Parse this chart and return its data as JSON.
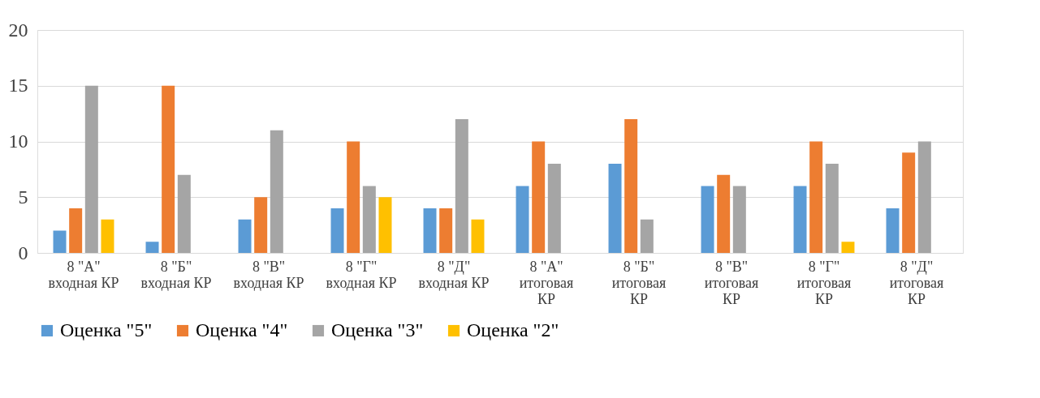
{
  "chart_data": {
    "type": "bar",
    "categories": [
      "8 \"А\" входная КР",
      "8 \"Б\" входная КР",
      "8 \"В\" входная КР",
      "8 \"Г\" входная КР",
      "8 \"Д\" входная КР",
      "8 \"А\" итоговая КР",
      "8 \"Б\" итоговая КР",
      "8 \"В\" итоговая КР",
      "8 \"Г\" итоговая КР",
      "8 \"Д\" итоговая КР"
    ],
    "series": [
      {
        "name": "Оценка \"5\"",
        "color": "#5b9bd5",
        "values": [
          2,
          1,
          3,
          4,
          4,
          6,
          8,
          6,
          6,
          4
        ]
      },
      {
        "name": "Оценка \"4\"",
        "color": "#ed7d31",
        "values": [
          4,
          15,
          5,
          10,
          4,
          10,
          12,
          7,
          10,
          9
        ]
      },
      {
        "name": "Оценка \"3\"",
        "color": "#a5a5a5",
        "values": [
          15,
          7,
          11,
          6,
          12,
          8,
          3,
          6,
          8,
          10
        ]
      },
      {
        "name": "Оценка \"2\"",
        "color": "#ffc000",
        "values": [
          3,
          null,
          null,
          5,
          3,
          null,
          null,
          null,
          1,
          null
        ]
      }
    ],
    "ylim": [
      0,
      20
    ],
    "yticks": [
      0,
      5,
      10,
      15,
      20
    ],
    "grid": "y",
    "legend": "bottom"
  }
}
